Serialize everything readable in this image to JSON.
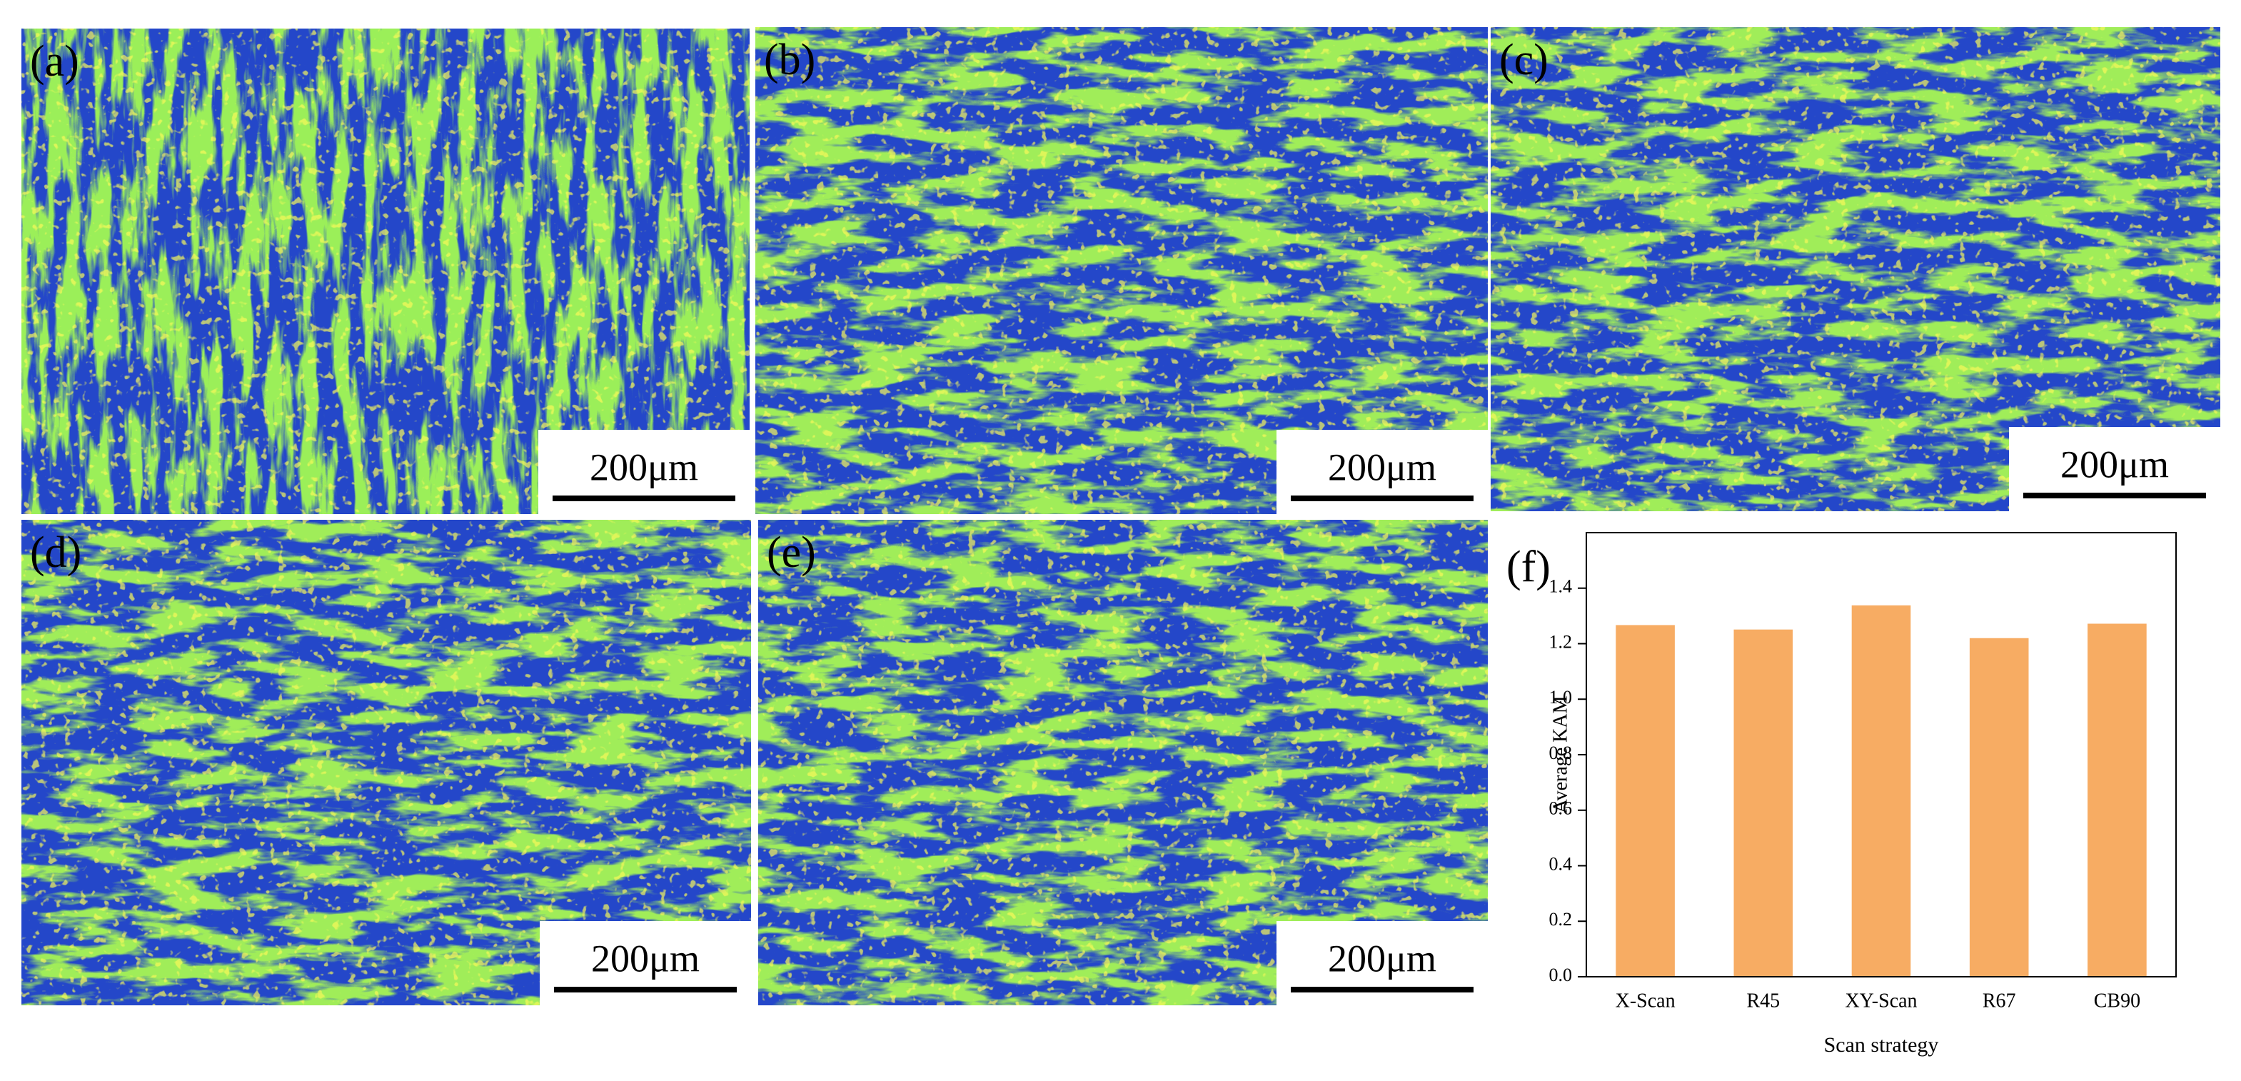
{
  "panels": [
    {
      "label": "(a)",
      "scale_bar": "200μm"
    },
    {
      "label": "(b)",
      "scale_bar": "200μm"
    },
    {
      "label": "(c)",
      "scale_bar": "200μm"
    },
    {
      "label": "(d)",
      "scale_bar": "200μm"
    },
    {
      "label": "(e)",
      "scale_bar": "200μm"
    }
  ],
  "chart_data": {
    "type": "bar",
    "panel_label": "(f)",
    "categories": [
      "X-Scan",
      "R45",
      "XY-Scan",
      "R67",
      "CB90"
    ],
    "values": [
      1.267,
      1.251,
      1.338,
      1.22,
      1.272
    ],
    "color": "#f7ac63",
    "xlabel": "Scan strategy",
    "ylabel": "Average KAM",
    "ylim": [
      0,
      1.6
    ],
    "yticks": [
      {
        "value": 0,
        "label": "0.0"
      },
      0.2,
      0.4,
      0.6,
      0.8,
      {
        "value": 1,
        "label": "1.0"
      },
      1.2,
      1.4
    ]
  }
}
